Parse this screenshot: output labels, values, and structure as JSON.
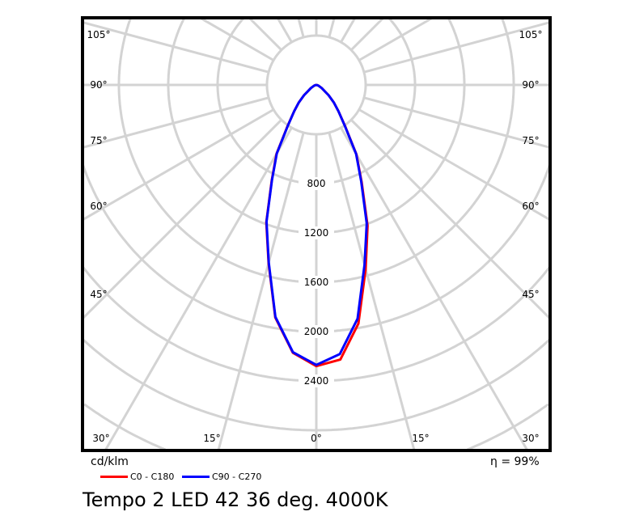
{
  "chart_data": {
    "type": "polar",
    "title": "Tempo 2 LED 42 36 deg. 4000K",
    "unit": "cd/klm",
    "efficiency": "η = 99%",
    "radial_ticks": [
      800,
      1200,
      1600,
      2000,
      2400
    ],
    "ring_step": 400,
    "angle_labels_side": [
      "105°",
      "90°",
      "75°",
      "60°",
      "45°"
    ],
    "angle_labels_bottom": [
      "30°",
      "15°",
      "0°",
      "15°",
      "30°"
    ],
    "gamma": [
      0,
      5,
      10,
      15,
      20,
      25,
      30,
      35,
      40,
      45,
      50,
      60,
      70,
      80,
      90
    ],
    "series": [
      {
        "name": "C0 - C180",
        "color": "#ff0000",
        "left": [
          2280,
          2180,
          1915,
          1495,
          1185,
          855,
          645,
          405,
          280,
          200,
          130,
          50,
          20,
          5,
          0
        ],
        "right": [
          2280,
          2235,
          1965,
          1545,
          1215,
          870,
          650,
          405,
          280,
          200,
          130,
          50,
          20,
          5,
          0
        ]
      },
      {
        "name": "C90 - C270",
        "color": "#0000ff",
        "left": [
          2270,
          2175,
          1910,
          1490,
          1180,
          850,
          640,
          400,
          280,
          200,
          130,
          50,
          20,
          5,
          0
        ],
        "right": [
          2270,
          2190,
          1925,
          1510,
          1195,
          860,
          645,
          400,
          280,
          200,
          130,
          50,
          20,
          5,
          0
        ]
      }
    ]
  }
}
